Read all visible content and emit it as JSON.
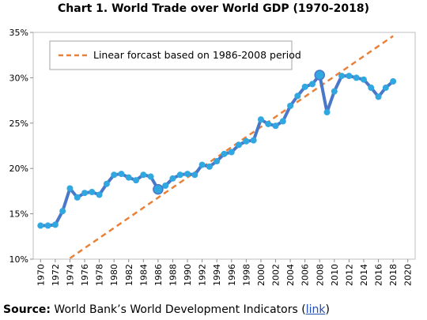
{
  "title": "Chart 1. World Trade over World GDP (1970-2018)",
  "source": {
    "label": "Source:",
    "text": "World Bank’s World Development Indicators (",
    "link_text": "link",
    "close": ")"
  },
  "chart_data": {
    "type": "line",
    "title": "Chart 1. World Trade over World GDP (1970-2018)",
    "xlabel": "",
    "ylabel": "",
    "xlim": [
      1969,
      2021
    ],
    "ylim": [
      10,
      35
    ],
    "x_ticks": [
      1970,
      1972,
      1974,
      1976,
      1978,
      1980,
      1982,
      1984,
      1986,
      1988,
      1990,
      1992,
      1994,
      1996,
      1998,
      2000,
      2002,
      2004,
      2006,
      2008,
      2010,
      2012,
      2014,
      2016,
      2018,
      2020
    ],
    "y_ticks": [
      10,
      15,
      20,
      25,
      30,
      35
    ],
    "y_tick_format": "%",
    "grid": false,
    "legend_position": "top-left",
    "series": [
      {
        "name": "",
        "style": "solid line with markers",
        "color": "#4a78c8",
        "marker_color": "#31a7e0",
        "x": [
          1970,
          1971,
          1972,
          1973,
          1974,
          1975,
          1976,
          1977,
          1978,
          1979,
          1980,
          1981,
          1982,
          1983,
          1984,
          1985,
          1986,
          1987,
          1988,
          1989,
          1990,
          1991,
          1992,
          1993,
          1994,
          1995,
          1996,
          1997,
          1998,
          1999,
          2000,
          2001,
          2002,
          2003,
          2004,
          2005,
          2006,
          2007,
          2008,
          2009,
          2010,
          2011,
          2012,
          2013,
          2014,
          2015,
          2016,
          2017,
          2018
        ],
        "values": [
          13.7,
          13.7,
          13.8,
          15.3,
          17.8,
          16.8,
          17.3,
          17.4,
          17.1,
          18.3,
          19.3,
          19.4,
          19.0,
          18.7,
          19.3,
          19.1,
          17.7,
          18.1,
          18.9,
          19.3,
          19.4,
          19.3,
          20.4,
          20.2,
          20.8,
          21.6,
          21.8,
          22.6,
          23.0,
          23.1,
          25.4,
          24.9,
          24.7,
          25.2,
          26.9,
          28.0,
          29.0,
          29.3,
          30.3,
          26.2,
          28.5,
          30.2,
          30.2,
          30.0,
          29.8,
          28.9,
          27.9,
          28.9,
          29.6
        ]
      },
      {
        "name": "Linear forcast based on 1986-2008 period",
        "style": "dashed",
        "color": "#e8813a",
        "x": [
          1974,
          2018
        ],
        "values": [
          10.1,
          34.6
        ]
      }
    ]
  }
}
